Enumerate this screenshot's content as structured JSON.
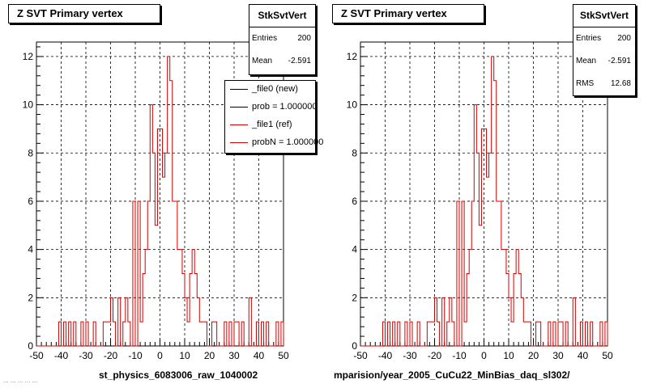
{
  "colors": {
    "ref": "#d40000",
    "new": "#000000",
    "grid": "#000000"
  },
  "chart_data": [
    {
      "type": "histogram",
      "title": "Z SVT Primary vertex",
      "xlabel": "st_physics_6083006_raw_1040002",
      "xlim": [
        -50,
        50
      ],
      "ylim": [
        0,
        12.6
      ],
      "xticks": [
        -50,
        -40,
        -30,
        -20,
        -10,
        0,
        10,
        20,
        30,
        40,
        50
      ],
      "yticks": [
        0,
        2,
        4,
        6,
        8,
        10,
        12
      ],
      "grid": true,
      "bin_width": 1,
      "bin_start": -50,
      "series": [
        {
          "name": "_file1 (ref)",
          "values": [
            0,
            0,
            0,
            0,
            0,
            0,
            0,
            0,
            0,
            1,
            0,
            1,
            0,
            1,
            0,
            1,
            0,
            0,
            1,
            0,
            1,
            0,
            0,
            1,
            0,
            0,
            0,
            1,
            1,
            1,
            2,
            1,
            0,
            2,
            0,
            1,
            2,
            1,
            0,
            6,
            0,
            6,
            1,
            3,
            4,
            6,
            10,
            8,
            5,
            9,
            9,
            7,
            8,
            12,
            11,
            6,
            6,
            4,
            4,
            3,
            2,
            1,
            3,
            4,
            3,
            2,
            1,
            1,
            1,
            0,
            0,
            1,
            1,
            0,
            0,
            0,
            1,
            0,
            1,
            0,
            1,
            1,
            0,
            1,
            0,
            0,
            2,
            0,
            0,
            1,
            0,
            1,
            0,
            1,
            0,
            0,
            0,
            1,
            0,
            1
          ]
        }
      ],
      "stats": {
        "title": "StkSvtVert",
        "entries_label": "Entries",
        "entries": "200",
        "mean_label": "Mean",
        "mean": "-2.591"
      },
      "legend": {
        "placement": "top-right",
        "entries": [
          {
            "label": "_file0 (new)",
            "color": "#000000"
          },
          {
            "label": "prob = 1.000000",
            "color": "#000000"
          },
          {
            "label": "_file1 (ref)",
            "color": "#d40000"
          },
          {
            "label": "probN = 1.000000",
            "color": "#d40000"
          }
        ]
      }
    },
    {
      "type": "histogram",
      "title": "Z SVT Primary vertex",
      "xlabel": "mparision/year_2005_CuCu22_MinBias_daq_sl302/",
      "xlim": [
        -50,
        50
      ],
      "ylim": [
        0,
        12.6
      ],
      "xticks": [
        -50,
        -40,
        -30,
        -20,
        -10,
        0,
        10,
        20,
        30,
        40,
        50
      ],
      "yticks": [
        0,
        2,
        4,
        6,
        8,
        10,
        12
      ],
      "grid": true,
      "bin_width": 1,
      "bin_start": -50,
      "series": [
        {
          "name": "StkSvtVert",
          "values": [
            0,
            0,
            0,
            0,
            0,
            0,
            0,
            0,
            0,
            1,
            0,
            1,
            0,
            1,
            0,
            1,
            0,
            0,
            1,
            0,
            1,
            0,
            0,
            1,
            0,
            0,
            0,
            1,
            1,
            1,
            2,
            1,
            0,
            2,
            0,
            1,
            2,
            1,
            0,
            6,
            0,
            6,
            1,
            3,
            4,
            6,
            10,
            8,
            5,
            9,
            9,
            7,
            8,
            12,
            11,
            6,
            6,
            4,
            4,
            3,
            2,
            1,
            3,
            4,
            3,
            2,
            1,
            1,
            1,
            0,
            0,
            1,
            1,
            0,
            0,
            0,
            1,
            0,
            1,
            0,
            1,
            1,
            0,
            1,
            0,
            0,
            2,
            0,
            0,
            1,
            0,
            1,
            0,
            1,
            0,
            0,
            0,
            1,
            0,
            1
          ]
        }
      ],
      "stats": {
        "title": "StkSvtVert",
        "entries_label": "Entries",
        "entries": "200",
        "mean_label": "Mean",
        "mean": "-2.591",
        "rms_label": "RMS",
        "rms": "12.68"
      }
    }
  ],
  "footer": {
    "corner_text": "... ... ... ... ..."
  }
}
